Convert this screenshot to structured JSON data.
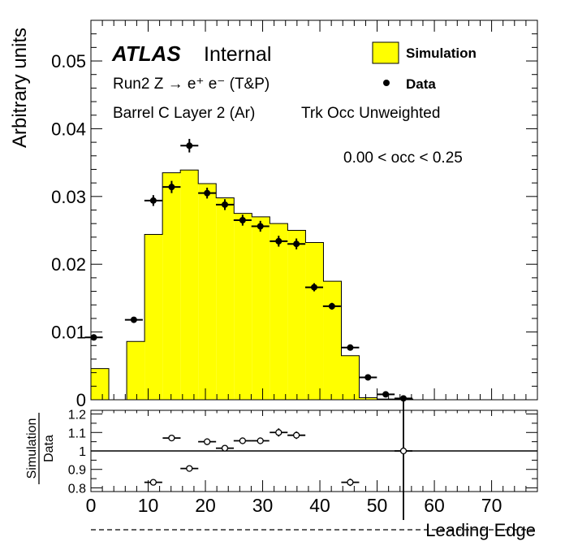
{
  "chart_data": [
    {
      "type": "histogram",
      "panel": "main",
      "ylabel": "Arbitrary units",
      "ylim": [
        0,
        0.056
      ],
      "xlim": [
        0,
        78
      ],
      "yticks": [
        "0",
        "0.01",
        "0.02",
        "0.03",
        "0.04",
        "0.05"
      ],
      "text": {
        "atlas": "ATLAS",
        "internal": "Internal",
        "process": "Run2 Z → e⁺ e⁻ (T&P)",
        "region": "Barrel C Layer 2 (Ar)",
        "weighting": "Trk Occ Unweighted",
        "occ_range": "0.00 < occ < 0.25"
      },
      "legend": {
        "placement": "top-right",
        "entries": [
          {
            "label": "Simulation",
            "style": "filled-box",
            "color": "#ffff00"
          },
          {
            "label": "Data",
            "style": "marker",
            "color": "#000000"
          }
        ]
      },
      "series": [
        {
          "name": "Simulation",
          "style": "filled-step",
          "fill": "#ffff00",
          "bin_edges": [
            0,
            3.125,
            6.25,
            9.375,
            12.5,
            15.625,
            18.75,
            21.875,
            25,
            28.125,
            31.25,
            34.375,
            37.5,
            40.625,
            43.75,
            46.875,
            50,
            53.125,
            56.25,
            59.375,
            62.5,
            65.625,
            68.75,
            71.875,
            75,
            78
          ],
          "values": [
            0.0046,
            0.0,
            0.0086,
            0.0244,
            0.0335,
            0.0339,
            0.0319,
            0.0298,
            0.0275,
            0.027,
            0.026,
            0.025,
            0.0232,
            0.0175,
            0.0065,
            0.0003,
            0.0001,
            0.0001,
            0,
            0,
            0,
            0,
            0,
            0,
            0
          ]
        },
        {
          "name": "Data",
          "style": "points-with-errors",
          "x": [
            0.5,
            7.5,
            10.9,
            14.1,
            17.2,
            20.3,
            23.4,
            26.5,
            29.6,
            32.8,
            35.9,
            39.0,
            42.1,
            45.3,
            48.4,
            51.5,
            54.6
          ],
          "y": [
            0.0092,
            0.0118,
            0.0294,
            0.0314,
            0.0375,
            0.0305,
            0.0288,
            0.0265,
            0.0256,
            0.0234,
            0.023,
            0.0166,
            0.0138,
            0.0077,
            0.0033,
            0.0008,
            0.0002
          ],
          "xerr": 1.5625,
          "yerr": [
            0.0004,
            0.0004,
            0.0008,
            0.0009,
            0.001,
            0.0008,
            0.0008,
            0.0008,
            0.0008,
            0.0008,
            0.0008,
            0.0006,
            0.0005,
            0.0004,
            0.0002,
            0.0001,
            0.0001
          ]
        }
      ]
    },
    {
      "type": "scatter",
      "panel": "ratio",
      "ylabel_top": "Simulation",
      "ylabel_bottom": "Data",
      "xlabel": "Leading Edge",
      "xlim": [
        0,
        78
      ],
      "ylim": [
        0.78,
        1.22
      ],
      "yticks": [
        "0.8",
        "0.9",
        "1",
        "1.1",
        "1.2"
      ],
      "xticks": [
        "0",
        "10",
        "20",
        "30",
        "40",
        "50",
        "60",
        "70"
      ],
      "reference_line": 1.0,
      "series": [
        {
          "name": "Simulation/Data",
          "style": "open-markers-with-errors",
          "x": [
            10.9,
            14.1,
            17.2,
            20.3,
            23.4,
            26.5,
            29.6,
            32.8,
            35.9,
            45.3,
            54.6
          ],
          "y": [
            0.83,
            1.07,
            0.905,
            1.05,
            1.015,
            1.055,
            1.055,
            1.1,
            1.085,
            0.83,
            1.0
          ],
          "xerr": 1.5625,
          "yerr": [
            0.008,
            0.015,
            0.01,
            0.018,
            0.012,
            0.018,
            0.018,
            0.022,
            0.02,
            0.02,
            0.42
          ]
        }
      ]
    }
  ]
}
